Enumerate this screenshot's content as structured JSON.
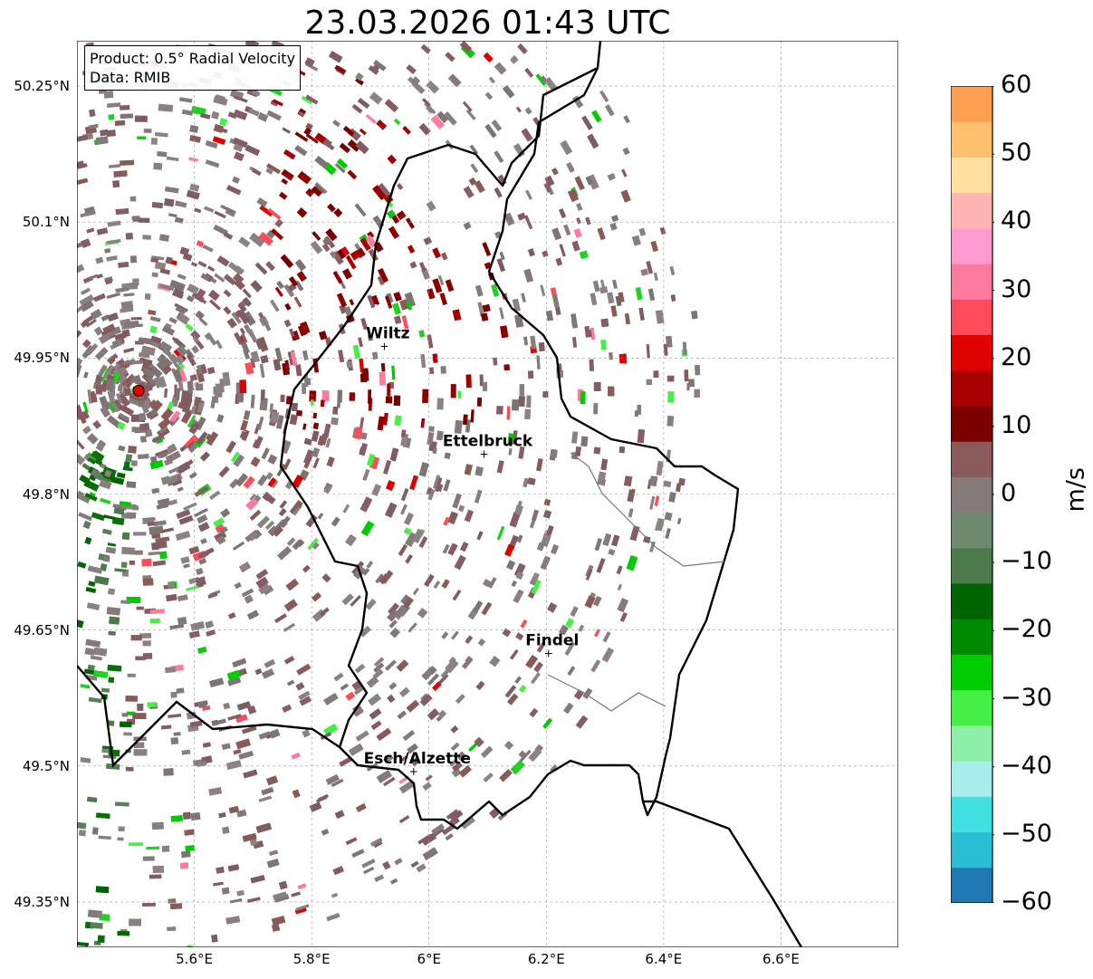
{
  "title": "23.03.2026 01:43 UTC",
  "info": {
    "product": "Product: 0.5° Radial Velocity",
    "source": "Data: RMIB"
  },
  "axes": {
    "lon_range": [
      5.4,
      6.8
    ],
    "lat_range": [
      49.3,
      50.3
    ],
    "x_ticks": [
      "5.6°E",
      "5.8°E",
      "6°E",
      "6.2°E",
      "6.4°E",
      "6.6°E"
    ],
    "x_values": [
      5.6,
      5.8,
      6.0,
      6.2,
      6.4,
      6.6
    ],
    "y_ticks": [
      "50.25°N",
      "50.1°N",
      "49.95°N",
      "49.8°N",
      "49.65°N",
      "49.5°N",
      "49.35°N"
    ],
    "y_values": [
      50.25,
      50.1,
      49.95,
      49.8,
      49.65,
      49.5,
      49.35
    ],
    "grid": true
  },
  "radar_site": {
    "lon": 5.505,
    "lat": 49.914,
    "color": "#e00000"
  },
  "cities": [
    {
      "name": "Wiltz",
      "lon": 5.93,
      "lat": 49.966
    },
    {
      "name": "Ettelbruck",
      "lon": 6.1,
      "lat": 49.847
    },
    {
      "name": "Findel",
      "lon": 6.21,
      "lat": 49.627
    },
    {
      "name": "Esch/Alzette",
      "lon": 5.98,
      "lat": 49.497
    }
  ],
  "colorbar": {
    "label": "m/s",
    "min": -60,
    "max": 60,
    "ticks": [
      "60",
      "50",
      "40",
      "30",
      "20",
      "10",
      "0",
      "−10",
      "−20",
      "−30",
      "−40",
      "−50",
      "−60"
    ],
    "tick_values": [
      60,
      50,
      40,
      30,
      20,
      10,
      0,
      -10,
      -20,
      -30,
      -40,
      -50,
      -60
    ],
    "colors": [
      "#1f77b4",
      "#2bbdd3",
      "#40e0e0",
      "#a8ecec",
      "#8ef0a8",
      "#44f044",
      "#00cc00",
      "#008a00",
      "#006400",
      "#4c7a4c",
      "#6f8a6f",
      "#857a7a",
      "#8a5a5a",
      "#7a0000",
      "#a80000",
      "#e00000",
      "#ff4a5a",
      "#ff7aa0",
      "#ff9ad0",
      "#ffb4b4",
      "#ffe0a0",
      "#ffc070",
      "#ffa050"
    ]
  }
}
